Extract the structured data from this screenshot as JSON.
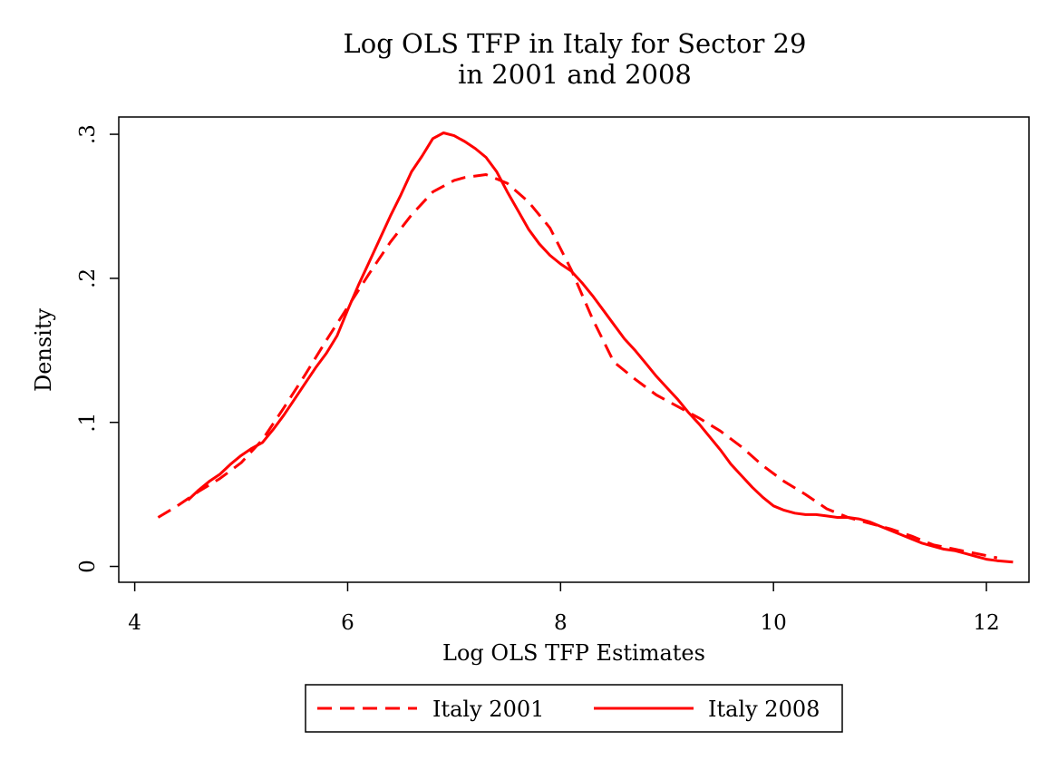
{
  "chart_data": {
    "type": "line",
    "title": "Log OLS TFP in Italy for Sector 29",
    "subtitle": "in 2001 and 2008",
    "xlabel": "Log OLS TFP Estimates",
    "ylabel": "Density",
    "xlim": [
      3.85,
      12.4
    ],
    "ylim": [
      -0.011,
      0.312
    ],
    "xticks": [
      4,
      6,
      8,
      10,
      12
    ],
    "xtick_labels": [
      "4",
      "6",
      "8",
      "10",
      "12"
    ],
    "yticks": [
      0,
      0.1,
      0.2,
      0.3
    ],
    "ytick_labels": [
      "0",
      ".1",
      ".2",
      ".3"
    ],
    "grid": false,
    "legend_position": "bottom",
    "color": "#ff0000",
    "series": [
      {
        "name": "Italy 2001",
        "style": "dashed",
        "x": [
          4.22,
          4.4,
          4.6,
          4.8,
          5.0,
          5.2,
          5.4,
          5.6,
          5.8,
          6.0,
          6.2,
          6.4,
          6.6,
          6.8,
          7.0,
          7.1,
          7.3,
          7.5,
          7.7,
          7.9,
          8.1,
          8.3,
          8.5,
          8.7,
          8.9,
          9.1,
          9.3,
          9.5,
          9.7,
          9.9,
          10.1,
          10.3,
          10.5,
          10.7,
          10.9,
          11.1,
          11.3,
          11.5,
          11.7,
          11.9,
          12.1
        ],
        "y": [
          0.034,
          0.042,
          0.052,
          0.061,
          0.072,
          0.088,
          0.11,
          0.133,
          0.157,
          0.18,
          0.203,
          0.225,
          0.244,
          0.26,
          0.268,
          0.27,
          0.272,
          0.266,
          0.253,
          0.235,
          0.206,
          0.172,
          0.142,
          0.13,
          0.119,
          0.111,
          0.103,
          0.094,
          0.083,
          0.07,
          0.059,
          0.05,
          0.04,
          0.034,
          0.03,
          0.026,
          0.021,
          0.015,
          0.012,
          0.009,
          0.006
        ]
      },
      {
        "name": "Italy 2008",
        "style": "solid",
        "x": [
          4.5,
          4.6,
          4.7,
          4.8,
          4.9,
          5.0,
          5.1,
          5.2,
          5.3,
          5.4,
          5.5,
          5.6,
          5.7,
          5.8,
          5.9,
          6.0,
          6.1,
          6.2,
          6.3,
          6.4,
          6.5,
          6.6,
          6.7,
          6.8,
          6.9,
          7.0,
          7.1,
          7.2,
          7.3,
          7.4,
          7.5,
          7.6,
          7.7,
          7.8,
          7.9,
          8.0,
          8.1,
          8.2,
          8.3,
          8.4,
          8.5,
          8.6,
          8.7,
          8.8,
          8.9,
          9.0,
          9.1,
          9.2,
          9.3,
          9.4,
          9.5,
          9.6,
          9.7,
          9.8,
          9.9,
          10.0,
          10.1,
          10.2,
          10.3,
          10.4,
          10.5,
          10.6,
          10.7,
          10.8,
          10.9,
          11.0,
          11.1,
          11.2,
          11.3,
          11.4,
          11.5,
          11.6,
          11.7,
          11.8,
          11.9,
          12.0,
          12.1,
          12.25
        ],
        "y": [
          0.046,
          0.053,
          0.059,
          0.064,
          0.071,
          0.077,
          0.082,
          0.086,
          0.095,
          0.105,
          0.116,
          0.127,
          0.138,
          0.148,
          0.16,
          0.178,
          0.195,
          0.211,
          0.227,
          0.243,
          0.258,
          0.274,
          0.285,
          0.297,
          0.301,
          0.299,
          0.295,
          0.29,
          0.284,
          0.274,
          0.26,
          0.247,
          0.234,
          0.224,
          0.216,
          0.21,
          0.205,
          0.197,
          0.188,
          0.178,
          0.168,
          0.158,
          0.15,
          0.141,
          0.132,
          0.124,
          0.116,
          0.107,
          0.099,
          0.09,
          0.081,
          0.071,
          0.063,
          0.055,
          0.048,
          0.042,
          0.039,
          0.037,
          0.036,
          0.036,
          0.035,
          0.034,
          0.034,
          0.033,
          0.031,
          0.028,
          0.025,
          0.022,
          0.019,
          0.016,
          0.014,
          0.012,
          0.011,
          0.009,
          0.007,
          0.005,
          0.004,
          0.003
        ]
      }
    ]
  }
}
